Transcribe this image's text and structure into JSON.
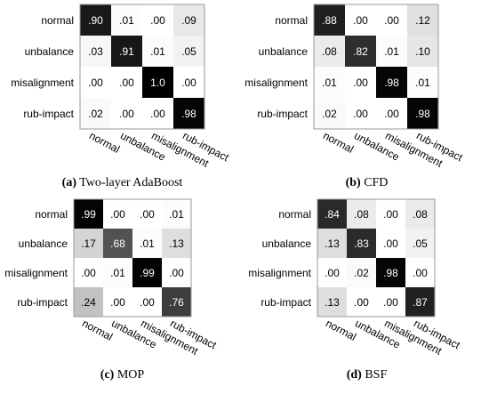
{
  "figure": {
    "colors": {
      "high": "#000000",
      "low": "#ffffff",
      "frame": "#999999"
    },
    "panels": [
      {
        "label": "(a)",
        "title": "Two-layer AdaBoost"
      },
      {
        "label": "(b)",
        "title": "CFD"
      },
      {
        "label": "(c)",
        "title": "MOP"
      },
      {
        "label": "(d)",
        "title": "BSF"
      }
    ]
  },
  "chart_data": [
    {
      "type": "heatmap",
      "rows": [
        "normal",
        "unbalance",
        "misalignment",
        "rub-impact"
      ],
      "columns": [
        "normal",
        "unbalance",
        "misalignment",
        "rub-impact"
      ],
      "values": [
        [
          0.9,
          0.01,
          0.0,
          0.09
        ],
        [
          0.03,
          0.91,
          0.01,
          0.05
        ],
        [
          0.0,
          0.0,
          1.0,
          0.0
        ],
        [
          0.02,
          0.0,
          0.0,
          0.98
        ]
      ],
      "labels": [
        [
          ".90",
          ".01",
          ".00",
          ".09"
        ],
        [
          ".03",
          ".91",
          ".01",
          ".05"
        ],
        [
          ".00",
          ".00",
          "1.0",
          ".00"
        ],
        [
          ".02",
          ".00",
          ".00",
          ".98"
        ]
      ],
      "colormap": "gray_r",
      "vmin": 0,
      "vmax": 1
    },
    {
      "type": "heatmap",
      "rows": [
        "normal",
        "unbalance",
        "misalignment",
        "rub-impact"
      ],
      "columns": [
        "normal",
        "unbalance",
        "misalignment",
        "rub-impact"
      ],
      "values": [
        [
          0.88,
          0.0,
          0.0,
          0.12
        ],
        [
          0.08,
          0.82,
          0.01,
          0.1
        ],
        [
          0.01,
          0.0,
          0.98,
          0.01
        ],
        [
          0.02,
          0.0,
          0.0,
          0.98
        ]
      ],
      "labels": [
        [
          ".88",
          ".00",
          ".00",
          ".12"
        ],
        [
          ".08",
          ".82",
          ".01",
          ".10"
        ],
        [
          ".01",
          ".00",
          ".98",
          ".01"
        ],
        [
          ".02",
          ".00",
          ".00",
          ".98"
        ]
      ],
      "colormap": "gray_r",
      "vmin": 0,
      "vmax": 1
    },
    {
      "type": "heatmap",
      "rows": [
        "normal",
        "unbalance",
        "misalignment",
        "rub-impact"
      ],
      "columns": [
        "normal",
        "unbalance",
        "misalignment",
        "rub-impact"
      ],
      "values": [
        [
          0.99,
          0.0,
          0.0,
          0.01
        ],
        [
          0.17,
          0.68,
          0.01,
          0.13
        ],
        [
          0.0,
          0.01,
          0.99,
          0.0
        ],
        [
          0.24,
          0.0,
          0.0,
          0.76
        ]
      ],
      "labels": [
        [
          ".99",
          ".00",
          ".00",
          ".01"
        ],
        [
          ".17",
          ".68",
          ".01",
          ".13"
        ],
        [
          ".00",
          ".01",
          ".99",
          ".00"
        ],
        [
          ".24",
          ".00",
          ".00",
          ".76"
        ]
      ],
      "colormap": "gray_r",
      "vmin": 0,
      "vmax": 1
    },
    {
      "type": "heatmap",
      "rows": [
        "normal",
        "unbalance",
        "misalignment",
        "rub-impact"
      ],
      "columns": [
        "normal",
        "unbalance",
        "misalignment",
        "rub-impact"
      ],
      "values": [
        [
          0.84,
          0.08,
          0.0,
          0.08
        ],
        [
          0.13,
          0.83,
          0.0,
          0.05
        ],
        [
          0.0,
          0.02,
          0.98,
          0.0
        ],
        [
          0.13,
          0.0,
          0.0,
          0.87
        ]
      ],
      "labels": [
        [
          ".84",
          ".08",
          ".00",
          ".08"
        ],
        [
          ".13",
          ".83",
          ".00",
          ".05"
        ],
        [
          ".00",
          ".02",
          ".98",
          ".00"
        ],
        [
          ".13",
          ".00",
          ".00",
          ".87"
        ]
      ],
      "colormap": "gray_r",
      "vmin": 0,
      "vmax": 1
    }
  ]
}
